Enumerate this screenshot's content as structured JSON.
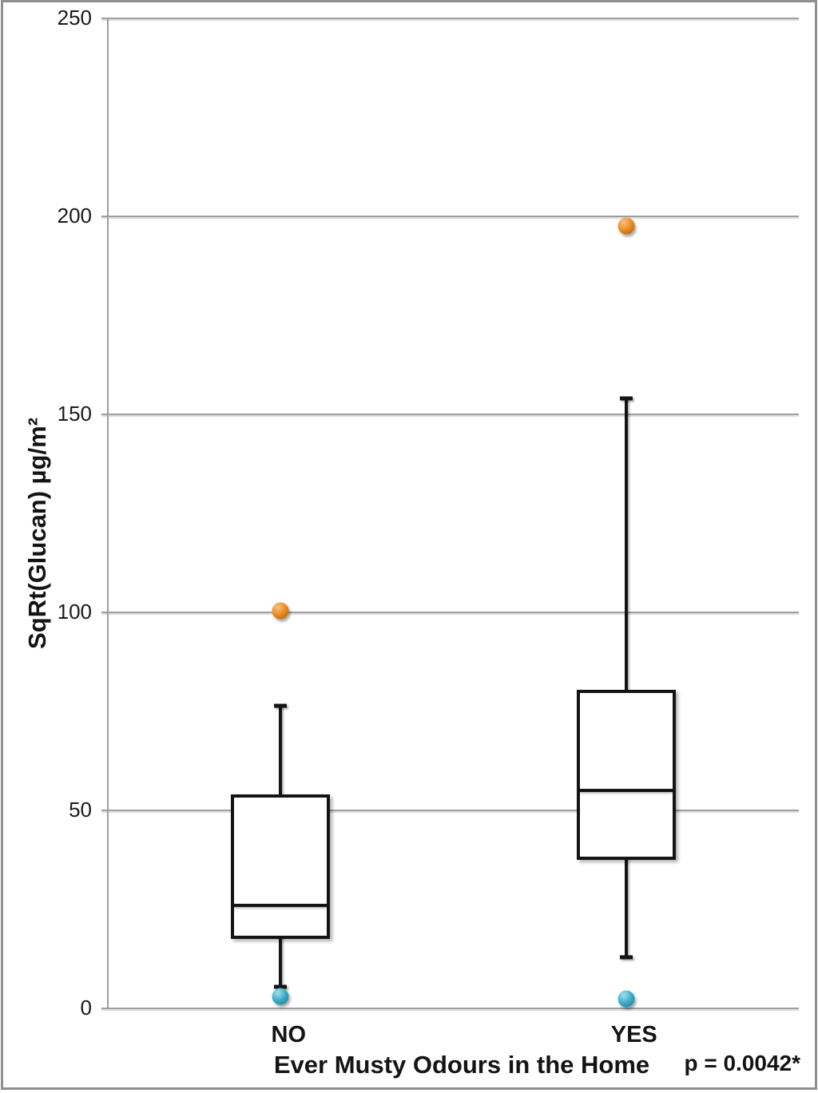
{
  "figure": {
    "background": "#FFFFFF",
    "border_color": "#8F8F8F"
  },
  "chart_data": {
    "type": "boxplot",
    "title": "",
    "xlabel": "Ever Musty Odours in the Home",
    "ylabel": "SqRt(Glucan) µg/m²",
    "annotation": "p = 0.0042*",
    "ylim": [
      0,
      250
    ],
    "yticks": [
      0,
      50,
      100,
      150,
      200,
      250
    ],
    "grid": true,
    "legend_position": "none",
    "categories": [
      "NO",
      "YES"
    ],
    "boxes": [
      {
        "category": "NO",
        "whisker_low": 5.5,
        "q1": 17.5,
        "median": 26,
        "q3": 54,
        "whisker_high": 76.5,
        "outliers_high": [
          100.5
        ],
        "outliers_low": [
          3
        ]
      },
      {
        "category": "YES",
        "whisker_low": 13,
        "q1": 37.5,
        "median": 55,
        "q3": 80.5,
        "whisker_high": 154,
        "outliers_high": [
          197.5
        ],
        "outliers_low": [
          2.5
        ]
      }
    ],
    "colors": {
      "outlier_high": "#E8821E",
      "outlier_low": "#35A8C6",
      "box_fill": "#FFFFFF",
      "box_border": "#141414",
      "gridline": "#9E9E9E",
      "text": "#141414"
    }
  }
}
